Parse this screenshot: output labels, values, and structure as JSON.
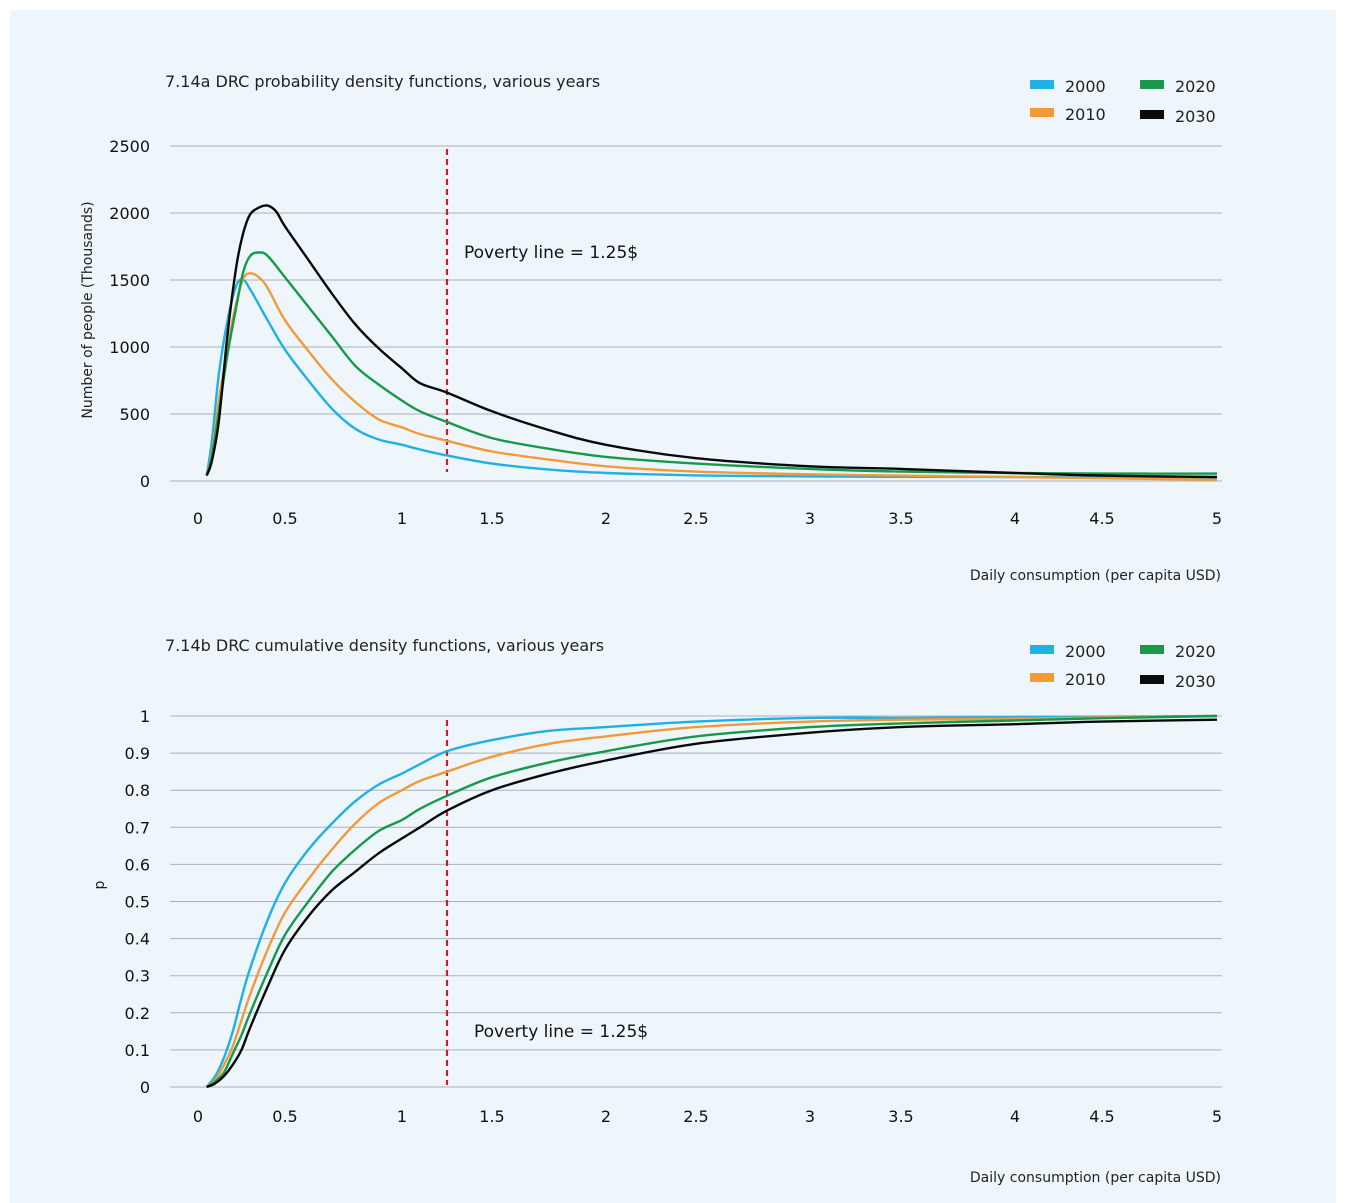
{
  "colors": {
    "2000": "#1fb0e6",
    "2010": "#f29a38",
    "2020": "#16994a",
    "2030": "#0a0a0a",
    "poverty": "#c8202a",
    "grid": "#a9b2ba"
  },
  "chart_data": [
    {
      "type": "line",
      "title": "7.14a DRC probability density functions, various years",
      "xlabel": "Daily consumption (per capita USD)",
      "ylabel": "Number of people (Thousands)",
      "xlim": [
        0,
        5
      ],
      "ylim": [
        0,
        2500
      ],
      "x_ticks": [
        0,
        0.5,
        1,
        1.5,
        2,
        2.5,
        3,
        3.5,
        4,
        4.5,
        5
      ],
      "y_ticks": [
        0,
        500,
        1000,
        1500,
        2000,
        2500
      ],
      "grid": true,
      "legend": "top-right",
      "annotation": {
        "x": 1.25,
        "label": "Poverty line = 1.25$"
      },
      "series": [
        {
          "name": "2000",
          "color": "#1fb0e6",
          "points": [
            [
              0.05,
              40
            ],
            [
              0.08,
              300
            ],
            [
              0.12,
              800
            ],
            [
              0.17,
              1200
            ],
            [
              0.22,
              1460
            ],
            [
              0.26,
              1500
            ],
            [
              0.3,
              1430
            ],
            [
              0.4,
              1200
            ],
            [
              0.5,
              980
            ],
            [
              0.6,
              750
            ],
            [
              0.7,
              540
            ],
            [
              0.8,
              390
            ],
            [
              0.9,
              310
            ],
            [
              1.0,
              270
            ],
            [
              1.1,
              235
            ],
            [
              1.25,
              190
            ],
            [
              1.5,
              130
            ],
            [
              1.75,
              85
            ],
            [
              2.0,
              60
            ],
            [
              2.5,
              42
            ],
            [
              3.0,
              34
            ],
            [
              3.5,
              31
            ],
            [
              4.0,
              29
            ],
            [
              4.5,
              27
            ],
            [
              5.0,
              25
            ]
          ]
        },
        {
          "name": "2010",
          "color": "#f29a38",
          "points": [
            [
              0.05,
              40
            ],
            [
              0.08,
              200
            ],
            [
              0.12,
              600
            ],
            [
              0.17,
              1000
            ],
            [
              0.22,
              1330
            ],
            [
              0.26,
              1510
            ],
            [
              0.3,
              1550
            ],
            [
              0.35,
              1520
            ],
            [
              0.4,
              1440
            ],
            [
              0.5,
              1200
            ],
            [
              0.6,
              970
            ],
            [
              0.7,
              760
            ],
            [
              0.8,
              590
            ],
            [
              0.9,
              460
            ],
            [
              1.0,
              400
            ],
            [
              1.1,
              350
            ],
            [
              1.25,
              300
            ],
            [
              1.5,
              220
            ],
            [
              1.75,
              160
            ],
            [
              2.0,
              110
            ],
            [
              2.5,
              70
            ],
            [
              3.0,
              50
            ],
            [
              3.5,
              40
            ],
            [
              4.0,
              30
            ],
            [
              4.5,
              20
            ],
            [
              5.0,
              10
            ]
          ]
        },
        {
          "name": "2020",
          "color": "#16994a",
          "points": [
            [
              0.05,
              40
            ],
            [
              0.08,
              180
            ],
            [
              0.12,
              520
            ],
            [
              0.17,
              950
            ],
            [
              0.22,
              1300
            ],
            [
              0.26,
              1560
            ],
            [
              0.3,
              1680
            ],
            [
              0.35,
              1705
            ],
            [
              0.4,
              1680
            ],
            [
              0.5,
              1520
            ],
            [
              0.6,
              1300
            ],
            [
              0.7,
              1080
            ],
            [
              0.8,
              860
            ],
            [
              0.9,
              720
            ],
            [
              1.0,
              600
            ],
            [
              1.1,
              520
            ],
            [
              1.25,
              440
            ],
            [
              1.5,
              320
            ],
            [
              1.75,
              240
            ],
            [
              2.0,
              180
            ],
            [
              2.5,
              130
            ],
            [
              3.0,
              90
            ],
            [
              3.5,
              70
            ],
            [
              4.0,
              60
            ],
            [
              4.5,
              55
            ],
            [
              5.0,
              55
            ]
          ]
        },
        {
          "name": "2030",
          "color": "#0a0a0a",
          "points": [
            [
              0.05,
              40
            ],
            [
              0.08,
              150
            ],
            [
              0.12,
              450
            ],
            [
              0.17,
              1100
            ],
            [
              0.22,
              1600
            ],
            [
              0.26,
              1850
            ],
            [
              0.3,
              1990
            ],
            [
              0.35,
              2040
            ],
            [
              0.4,
              2055
            ],
            [
              0.45,
              2010
            ],
            [
              0.5,
              1900
            ],
            [
              0.6,
              1650
            ],
            [
              0.7,
              1400
            ],
            [
              0.8,
              1170
            ],
            [
              0.9,
              990
            ],
            [
              1.0,
              840
            ],
            [
              1.1,
              730
            ],
            [
              1.25,
              660
            ],
            [
              1.5,
              520
            ],
            [
              1.75,
              380
            ],
            [
              2.0,
              270
            ],
            [
              2.5,
              170
            ],
            [
              3.0,
              110
            ],
            [
              3.5,
              90
            ],
            [
              4.0,
              60
            ],
            [
              4.5,
              40
            ],
            [
              5.0,
              30
            ]
          ]
        }
      ]
    },
    {
      "type": "line",
      "title": "7.14b DRC cumulative density functions, various years",
      "xlabel": "Daily consumption (per capita USD)",
      "ylabel": "p",
      "xlim": [
        0,
        5
      ],
      "ylim": [
        0,
        1
      ],
      "x_ticks": [
        0,
        0.5,
        1,
        1.5,
        2,
        2.5,
        3,
        3.5,
        4,
        4.5,
        5
      ],
      "y_ticks": [
        0,
        0.1,
        0.2,
        0.3,
        0.4,
        0.5,
        0.6,
        0.7,
        0.8,
        0.9,
        1
      ],
      "grid": true,
      "legend": "top-right",
      "annotation": {
        "x": 1.25,
        "label": "Poverty line = 1.25$"
      },
      "series": [
        {
          "name": "2000",
          "color": "#1fb0e6",
          "points": [
            [
              0.05,
              0.0
            ],
            [
              0.1,
              0.03
            ],
            [
              0.15,
              0.08
            ],
            [
              0.2,
              0.15
            ],
            [
              0.25,
              0.24
            ],
            [
              0.3,
              0.32
            ],
            [
              0.4,
              0.45
            ],
            [
              0.5,
              0.55
            ],
            [
              0.6,
              0.64
            ],
            [
              0.7,
              0.71
            ],
            [
              0.8,
              0.77
            ],
            [
              0.9,
              0.815
            ],
            [
              1.0,
              0.845
            ],
            [
              1.1,
              0.87
            ],
            [
              1.25,
              0.905
            ],
            [
              1.5,
              0.935
            ],
            [
              1.75,
              0.96
            ],
            [
              2.0,
              0.97
            ],
            [
              2.5,
              0.985
            ],
            [
              3.0,
              0.995
            ],
            [
              3.5,
              0.995
            ],
            [
              4.0,
              0.997
            ],
            [
              4.5,
              0.998
            ],
            [
              5.0,
              1.0
            ]
          ]
        },
        {
          "name": "2010",
          "color": "#f29a38",
          "points": [
            [
              0.05,
              0.0
            ],
            [
              0.1,
              0.02
            ],
            [
              0.15,
              0.06
            ],
            [
              0.2,
              0.11
            ],
            [
              0.25,
              0.18
            ],
            [
              0.3,
              0.25
            ],
            [
              0.4,
              0.37
            ],
            [
              0.5,
              0.47
            ],
            [
              0.6,
              0.56
            ],
            [
              0.7,
              0.64
            ],
            [
              0.8,
              0.71
            ],
            [
              0.9,
              0.765
            ],
            [
              1.0,
              0.8
            ],
            [
              1.1,
              0.825
            ],
            [
              1.25,
              0.85
            ],
            [
              1.5,
              0.89
            ],
            [
              1.75,
              0.925
            ],
            [
              2.0,
              0.945
            ],
            [
              2.5,
              0.97
            ],
            [
              3.0,
              0.985
            ],
            [
              3.5,
              0.99
            ],
            [
              4.0,
              0.993
            ],
            [
              4.5,
              0.996
            ],
            [
              5.0,
              1.0
            ]
          ]
        },
        {
          "name": "2020",
          "color": "#16994a",
          "points": [
            [
              0.05,
              0.0
            ],
            [
              0.1,
              0.015
            ],
            [
              0.15,
              0.04
            ],
            [
              0.2,
              0.09
            ],
            [
              0.25,
              0.14
            ],
            [
              0.3,
              0.2
            ],
            [
              0.4,
              0.31
            ],
            [
              0.5,
              0.41
            ],
            [
              0.6,
              0.5
            ],
            [
              0.7,
              0.58
            ],
            [
              0.8,
              0.64
            ],
            [
              0.9,
              0.69
            ],
            [
              1.0,
              0.72
            ],
            [
              1.1,
              0.75
            ],
            [
              1.25,
              0.785
            ],
            [
              1.5,
              0.835
            ],
            [
              1.75,
              0.875
            ],
            [
              2.0,
              0.905
            ],
            [
              2.5,
              0.945
            ],
            [
              3.0,
              0.97
            ],
            [
              3.5,
              0.98
            ],
            [
              4.0,
              0.988
            ],
            [
              4.5,
              0.994
            ],
            [
              5.0,
              1.0
            ]
          ]
        },
        {
          "name": "2030",
          "color": "#0a0a0a",
          "points": [
            [
              0.05,
              0.0
            ],
            [
              0.1,
              0.01
            ],
            [
              0.15,
              0.03
            ],
            [
              0.2,
              0.06
            ],
            [
              0.25,
              0.1
            ],
            [
              0.3,
              0.16
            ],
            [
              0.4,
              0.27
            ],
            [
              0.5,
              0.37
            ],
            [
              0.6,
              0.46
            ],
            [
              0.7,
              0.53
            ],
            [
              0.8,
              0.58
            ],
            [
              0.9,
              0.63
            ],
            [
              1.0,
              0.67
            ],
            [
              1.1,
              0.7
            ],
            [
              1.25,
              0.745
            ],
            [
              1.5,
              0.8
            ],
            [
              1.75,
              0.845
            ],
            [
              2.0,
              0.88
            ],
            [
              2.5,
              0.925
            ],
            [
              3.0,
              0.955
            ],
            [
              3.5,
              0.97
            ],
            [
              4.0,
              0.978
            ],
            [
              4.5,
              0.985
            ],
            [
              5.0,
              0.99
            ]
          ]
        }
      ]
    }
  ]
}
